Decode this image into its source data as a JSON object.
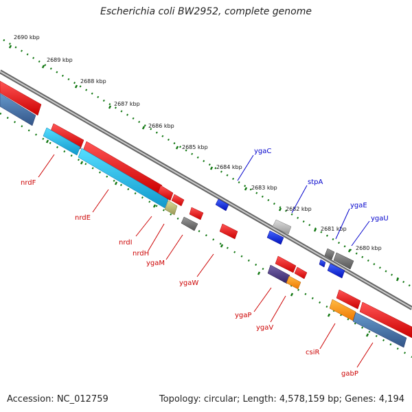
{
  "title": "Escherichia coli BW2952, complete genome",
  "footer": {
    "accession": "Accession: NC_012759",
    "summary": "Topology: circular; Length: 4,578,159 bp; Genes: 4,194"
  },
  "colors": {
    "forward_red": "#ee1111",
    "reverse_red": "#cc0000",
    "cyan": "#22bbee",
    "steel": "#4477aa",
    "blue": "#0022ee",
    "gray": "#777777",
    "light_gray": "#bbbbbb",
    "orange": "#ff9900",
    "purple": "#55448a",
    "khaki": "#bbbb77",
    "tick_green": "#117711",
    "backbone": "#888888"
  },
  "ticks": [
    "2690 kbp",
    "2689 kbp",
    "2688 kbp",
    "2687 kbp",
    "2686 kbp",
    "2685 kbp",
    "2684 kbp",
    "2683 kbp",
    "2682 kbp",
    "2681 kbp",
    "2680 kbp"
  ],
  "gene_labels_top": [
    "ygaC",
    "stpA",
    "ygaE",
    "ygaU"
  ],
  "gene_labels_bottom": [
    "nrdF",
    "nrdE",
    "nrdI",
    "nrdH",
    "ygaM",
    "ygaW",
    "ygaP",
    "ygaV",
    "csiR",
    "gabP"
  ]
}
